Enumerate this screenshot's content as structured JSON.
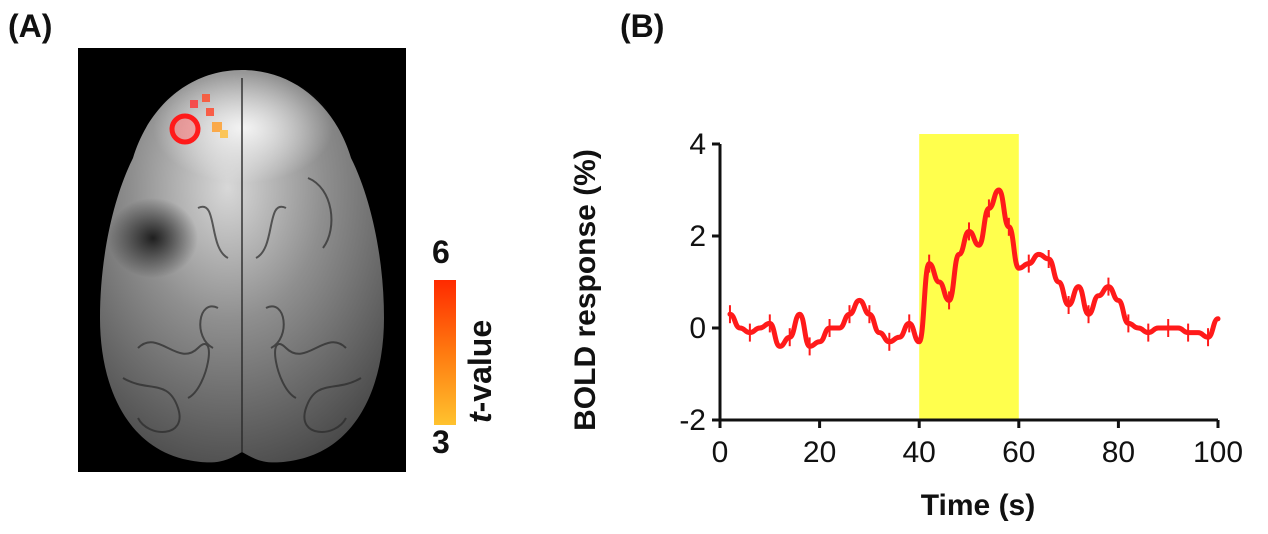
{
  "panels": {
    "a_label": "(A)",
    "b_label": "(B)"
  },
  "colorbar": {
    "max": "6",
    "min": "3",
    "title_italic": "t",
    "title_rest": "-value",
    "colors": [
      "#ff2a00",
      "#ff7a10",
      "#ffc22e"
    ]
  },
  "brain": {
    "roi_color": "#ff1a1a"
  },
  "chart_data": {
    "type": "line",
    "xlabel": "Time (s)",
    "ylabel": "BOLD response (%)",
    "xlim": [
      0,
      100
    ],
    "ylim": [
      -2,
      4
    ],
    "x_ticks": [
      "0",
      "20",
      "40",
      "60",
      "80",
      "100"
    ],
    "y_ticks": [
      "-2",
      "0",
      "2",
      "4"
    ],
    "stimulus_window": [
      40,
      60
    ],
    "stimulus_color": "#ffff4d",
    "line_color": "#ff1a1a",
    "series": [
      {
        "x": [
          2,
          4,
          6,
          8,
          10,
          12,
          14,
          16,
          18,
          20,
          22,
          24,
          26,
          28,
          30,
          32,
          34,
          36,
          38,
          40,
          42,
          44,
          46,
          48,
          50,
          52,
          54,
          56,
          58,
          60,
          62,
          64,
          66,
          68,
          70,
          72,
          74,
          76,
          78,
          80,
          82,
          84,
          86,
          88,
          90,
          92,
          94,
          96,
          98,
          100
        ],
        "y": [
          0.3,
          0.0,
          -0.1,
          0.0,
          0.1,
          -0.4,
          -0.2,
          0.3,
          -0.4,
          -0.3,
          0.0,
          0.0,
          0.3,
          0.6,
          0.3,
          -0.1,
          -0.3,
          -0.2,
          0.1,
          -0.3,
          1.4,
          1.0,
          0.6,
          1.6,
          2.1,
          1.8,
          2.6,
          3.0,
          2.2,
          1.3,
          1.4,
          1.6,
          1.5,
          1.0,
          0.5,
          0.9,
          0.3,
          0.7,
          0.9,
          0.6,
          0.1,
          0.0,
          -0.1,
          0.0,
          0.0,
          0.0,
          -0.1,
          -0.1,
          -0.2,
          0.2
        ]
      }
    ]
  }
}
